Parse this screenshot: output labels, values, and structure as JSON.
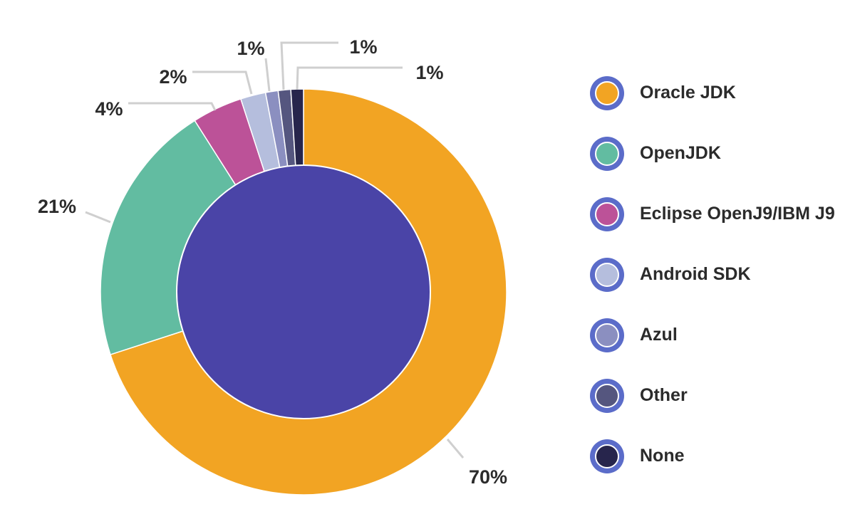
{
  "chart_data": {
    "type": "pie",
    "title": "",
    "slices": [
      {
        "name": "Oracle JDK",
        "value": 70,
        "label": "70%",
        "color": "#f2a423"
      },
      {
        "name": "OpenJDK",
        "value": 21,
        "label": "21%",
        "color": "#62bca1"
      },
      {
        "name": "Eclipse OpenJ9/IBM J9",
        "value": 4,
        "label": "4%",
        "color": "#bc5298"
      },
      {
        "name": "Android SDK",
        "value": 2,
        "label": "2%",
        "color": "#b5bedd"
      },
      {
        "name": "Azul",
        "value": 1,
        "label": "1%",
        "color": "#8b8fc0"
      },
      {
        "name": "Other",
        "value": 1,
        "label": "1%",
        "color": "#55567f"
      },
      {
        "name": "None",
        "value": 1,
        "label": "1%",
        "color": "#27254c"
      }
    ],
    "center_color": "#4a44a7",
    "legend_position": "right"
  }
}
